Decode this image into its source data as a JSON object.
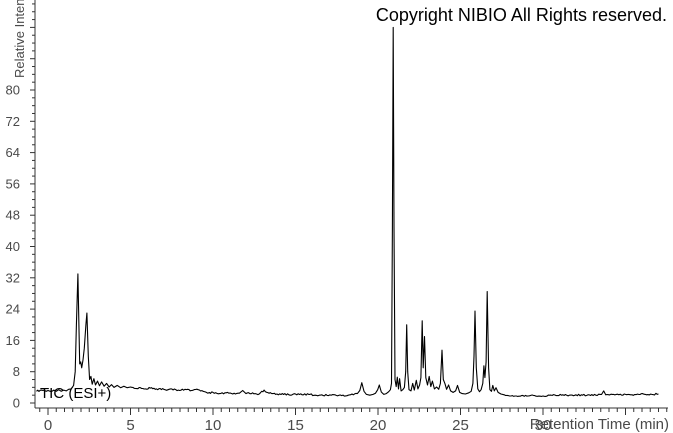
{
  "copyright_text": "Copyright NIBIO All Rights reserved.",
  "trace_label": "TIC (ESI+)",
  "chart_data": {
    "type": "line",
    "title": "",
    "xlabel": "Retention Time (min)",
    "ylabel": "Relative Intensity",
    "xlim": [
      -0.75,
      37.6
    ],
    "ylim": [
      0,
      103
    ],
    "grid": false,
    "legend": false,
    "x_major_tick_step": 5,
    "x_minor_tick_step": 0.5,
    "x_tick_labels": [
      0,
      5,
      10,
      15,
      20,
      25,
      30
    ],
    "y_major_tick_step": 8,
    "y_minor_tick_step": 2,
    "y_tick_labels": [
      0,
      8,
      16,
      24,
      32,
      40,
      48,
      56,
      64,
      72,
      80
    ],
    "line_color": "#000000",
    "axis_color": "#333333",
    "tick_label_color": "#4a4a4a",
    "noise_amplitude": 0.22,
    "series": [
      {
        "name": "TIC (ESI+)",
        "points": [
          [
            -0.7,
            3.0
          ],
          [
            -0.4,
            3.3
          ],
          [
            -0.1,
            3.0
          ],
          [
            0.0,
            3.2
          ],
          [
            0.2,
            2.9
          ],
          [
            0.35,
            3.3
          ],
          [
            0.5,
            3.0
          ],
          [
            0.65,
            3.4
          ],
          [
            0.8,
            3.0
          ],
          [
            0.95,
            3.3
          ],
          [
            1.1,
            3.1
          ],
          [
            1.25,
            3.5
          ],
          [
            1.4,
            3.6
          ],
          [
            1.55,
            4.5
          ],
          [
            1.65,
            8.0
          ],
          [
            1.72,
            20.0
          ],
          [
            1.81,
            33.0
          ],
          [
            1.87,
            20.0
          ],
          [
            1.92,
            10.0
          ],
          [
            1.98,
            10.5
          ],
          [
            2.04,
            9.0
          ],
          [
            2.12,
            11.0
          ],
          [
            2.2,
            14.0
          ],
          [
            2.3,
            20.0
          ],
          [
            2.36,
            23.0
          ],
          [
            2.44,
            12.0
          ],
          [
            2.52,
            6.0
          ],
          [
            2.6,
            6.8
          ],
          [
            2.68,
            4.8
          ],
          [
            2.78,
            6.2
          ],
          [
            2.88,
            4.6
          ],
          [
            3.0,
            5.6
          ],
          [
            3.12,
            4.4
          ],
          [
            3.25,
            5.4
          ],
          [
            3.4,
            4.3
          ],
          [
            3.55,
            5.0
          ],
          [
            3.7,
            4.1
          ],
          [
            3.85,
            4.7
          ],
          [
            4.0,
            4.0
          ],
          [
            4.2,
            4.5
          ],
          [
            4.4,
            3.9
          ],
          [
            4.6,
            4.3
          ],
          [
            4.8,
            3.9
          ],
          [
            5.0,
            4.1
          ],
          [
            5.3,
            3.7
          ],
          [
            5.6,
            3.9
          ],
          [
            5.9,
            3.6
          ],
          [
            6.2,
            3.8
          ],
          [
            6.5,
            3.5
          ],
          [
            6.8,
            3.7
          ],
          [
            7.1,
            3.4
          ],
          [
            7.5,
            3.6
          ],
          [
            7.9,
            3.3
          ],
          [
            8.3,
            3.5
          ],
          [
            8.7,
            3.2
          ],
          [
            9.1,
            3.4
          ],
          [
            9.4,
            3.0
          ],
          [
            9.7,
            2.5
          ],
          [
            10.0,
            2.7
          ],
          [
            10.4,
            2.4
          ],
          [
            10.8,
            2.6
          ],
          [
            11.2,
            2.3
          ],
          [
            11.6,
            2.5
          ],
          [
            11.8,
            3.2
          ],
          [
            12.0,
            2.4
          ],
          [
            12.4,
            2.6
          ],
          [
            12.8,
            2.3
          ],
          [
            13.1,
            3.3
          ],
          [
            13.4,
            2.5
          ],
          [
            13.8,
            2.2
          ],
          [
            14.2,
            2.4
          ],
          [
            14.6,
            2.1
          ],
          [
            15.0,
            2.3
          ],
          [
            15.4,
            2.1
          ],
          [
            15.8,
            2.2
          ],
          [
            16.2,
            2.0
          ],
          [
            16.6,
            2.1
          ],
          [
            17.0,
            1.9
          ],
          [
            17.4,
            2.1
          ],
          [
            17.8,
            1.9
          ],
          [
            18.2,
            2.0
          ],
          [
            18.5,
            2.1
          ],
          [
            18.75,
            2.4
          ],
          [
            18.9,
            3.2
          ],
          [
            19.02,
            5.2
          ],
          [
            19.15,
            3.0
          ],
          [
            19.3,
            2.2
          ],
          [
            19.5,
            2.0
          ],
          [
            19.7,
            2.2
          ],
          [
            19.85,
            2.5
          ],
          [
            19.98,
            3.4
          ],
          [
            20.08,
            4.6
          ],
          [
            20.2,
            2.8
          ],
          [
            20.35,
            2.2
          ],
          [
            20.5,
            2.4
          ],
          [
            20.65,
            2.9
          ],
          [
            20.75,
            3.4
          ],
          [
            20.82,
            5.0
          ],
          [
            20.87,
            45.0
          ],
          [
            20.92,
            96.0
          ],
          [
            20.97,
            45.0
          ],
          [
            21.03,
            6.0
          ],
          [
            21.1,
            4.2
          ],
          [
            21.17,
            6.6
          ],
          [
            21.24,
            3.6
          ],
          [
            21.31,
            6.2
          ],
          [
            21.4,
            3.1
          ],
          [
            21.5,
            3.4
          ],
          [
            21.6,
            4.0
          ],
          [
            21.68,
            8.0
          ],
          [
            21.74,
            20.0
          ],
          [
            21.8,
            8.0
          ],
          [
            21.88,
            3.4
          ],
          [
            22.0,
            3.1
          ],
          [
            22.1,
            5.0
          ],
          [
            22.2,
            3.3
          ],
          [
            22.32,
            5.8
          ],
          [
            22.42,
            3.6
          ],
          [
            22.52,
            4.6
          ],
          [
            22.6,
            6.5
          ],
          [
            22.68,
            21.0
          ],
          [
            22.74,
            9.0
          ],
          [
            22.82,
            17.0
          ],
          [
            22.9,
            6.5
          ],
          [
            23.0,
            4.6
          ],
          [
            23.1,
            6.8
          ],
          [
            23.2,
            4.2
          ],
          [
            23.3,
            5.6
          ],
          [
            23.42,
            3.6
          ],
          [
            23.55,
            4.1
          ],
          [
            23.68,
            3.5
          ],
          [
            23.78,
            5.0
          ],
          [
            23.88,
            13.5
          ],
          [
            23.96,
            6.0
          ],
          [
            24.06,
            4.9
          ],
          [
            24.16,
            3.5
          ],
          [
            24.28,
            4.6
          ],
          [
            24.4,
            3.1
          ],
          [
            24.55,
            2.7
          ],
          [
            24.7,
            3.1
          ],
          [
            24.82,
            4.5
          ],
          [
            24.95,
            2.7
          ],
          [
            25.1,
            2.4
          ],
          [
            25.3,
            2.3
          ],
          [
            25.5,
            2.6
          ],
          [
            25.65,
            3.0
          ],
          [
            25.75,
            5.0
          ],
          [
            25.82,
            12.0
          ],
          [
            25.88,
            23.5
          ],
          [
            25.96,
            9.0
          ],
          [
            26.05,
            3.6
          ],
          [
            26.15,
            2.9
          ],
          [
            26.25,
            3.4
          ],
          [
            26.35,
            5.0
          ],
          [
            26.42,
            9.5
          ],
          [
            26.48,
            6.5
          ],
          [
            26.55,
            10.5
          ],
          [
            26.62,
            28.5
          ],
          [
            26.7,
            9.0
          ],
          [
            26.78,
            3.4
          ],
          [
            26.88,
            3.0
          ],
          [
            26.96,
            4.5
          ],
          [
            27.05,
            3.1
          ],
          [
            27.15,
            3.9
          ],
          [
            27.28,
            2.7
          ],
          [
            27.45,
            2.3
          ],
          [
            27.65,
            2.1
          ],
          [
            27.9,
            1.9
          ],
          [
            28.3,
            1.8
          ],
          [
            28.7,
            1.9
          ],
          [
            29.1,
            1.8
          ],
          [
            29.5,
            1.9
          ],
          [
            30.0,
            1.8
          ],
          [
            30.4,
            2.0
          ],
          [
            30.8,
            1.9
          ],
          [
            31.2,
            2.1
          ],
          [
            31.6,
            2.0
          ],
          [
            32.0,
            2.1
          ],
          [
            32.4,
            2.0
          ],
          [
            32.8,
            2.1
          ],
          [
            33.2,
            2.0
          ],
          [
            33.55,
            2.2
          ],
          [
            33.68,
            3.1
          ],
          [
            33.8,
            2.1
          ],
          [
            34.2,
            2.2
          ],
          [
            34.6,
            2.1
          ],
          [
            35.0,
            2.2
          ],
          [
            35.4,
            2.1
          ],
          [
            35.8,
            2.2
          ],
          [
            36.2,
            2.2
          ],
          [
            36.6,
            2.2
          ],
          [
            37.0,
            2.3
          ]
        ]
      }
    ]
  }
}
